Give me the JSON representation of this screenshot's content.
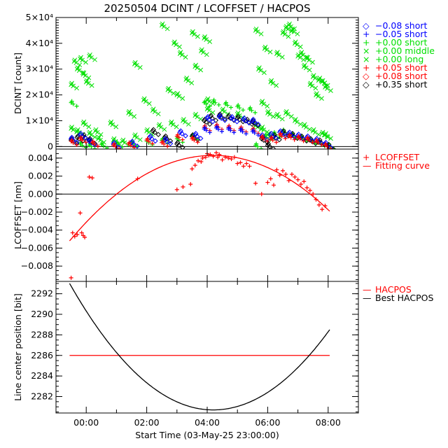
{
  "title": "20250504 DCINT / LCOFFSET / HACPOS",
  "xlabel": "Start Time (03-May-25 23:00:00)",
  "x_ticks": [
    "00:00",
    "02:00",
    "04:00",
    "06:00",
    "08:00"
  ],
  "colors": {
    "green": "#00e000",
    "blue": "#0000ff",
    "red": "#ff0000",
    "black": "#000000"
  },
  "chart_data": [
    {
      "type": "scatter",
      "name": "DCINT",
      "ylabel": "DCINT [count]",
      "xlim_hours": [
        -1.0,
        9.0
      ],
      "ylim": [
        -1000,
        50000
      ],
      "y_ticks": [
        {
          "value": 0,
          "label": "0"
        },
        {
          "value": 10000,
          "label": "1×10⁴"
        },
        {
          "value": 20000,
          "label": "2×10⁴"
        },
        {
          "value": 30000,
          "label": "3×10⁴"
        },
        {
          "value": 40000,
          "label": "4×10⁴"
        },
        {
          "value": 50000,
          "label": "5×10⁴"
        }
      ],
      "legend": [
        {
          "symbol": "◇",
          "label": "−0.08 short",
          "color": "#0000ff"
        },
        {
          "symbol": "+",
          "label": "−0.05 short",
          "color": "#0000ff"
        },
        {
          "symbol": "+",
          "label": "+0.00 short",
          "color": "#00e000"
        },
        {
          "symbol": "×",
          "label": "+0.00 middle",
          "color": "#00e000"
        },
        {
          "symbol": "×",
          "label": "+0.00 long",
          "color": "#00e000"
        },
        {
          "symbol": "+",
          "label": "+0.05 short",
          "color": "#ff0000"
        },
        {
          "symbol": "◇",
          "label": "+0.08 short",
          "color": "#ff0000"
        },
        {
          "symbol": "◇",
          "label": "+0.35 short",
          "color": "#000000"
        }
      ],
      "series": [
        {
          "name": "+0.00 long",
          "marker": "x",
          "color": "#00e000",
          "x": [
            -0.5,
            -0.4,
            -0.3,
            -0.2,
            -0.1,
            0.0,
            0.1,
            0.3,
            0.8,
            1.4,
            1.6,
            1.9,
            2.2,
            2.5,
            2.7,
            2.9,
            3.0,
            3.1,
            3.3,
            3.5,
            3.6,
            3.8,
            3.9,
            4.0,
            5.6,
            5.7,
            5.8,
            5.9,
            6.0,
            6.1,
            6.3,
            6.5,
            6.6,
            6.7,
            6.8,
            6.9,
            7.0,
            7.1,
            7.2,
            7.3,
            7.4,
            7.5,
            7.6,
            7.7,
            7.8,
            7.9
          ],
          "y": [
            24000,
            33000,
            30000,
            34000,
            28000,
            25000,
            35000,
            6000,
            9000,
            13000,
            32000,
            18000,
            14000,
            47000,
            22000,
            40000,
            20000,
            36000,
            26000,
            44000,
            31000,
            37000,
            42000,
            18000,
            45000,
            30000,
            17000,
            38000,
            13000,
            25000,
            36000,
            44000,
            46000,
            47000,
            45000,
            40000,
            35000,
            36000,
            31000,
            34000,
            24000,
            27000,
            20000,
            26000,
            25000,
            23000
          ]
        },
        {
          "name": "+0.00 middle",
          "marker": "x",
          "color": "#00e000",
          "x": [
            -0.5,
            -0.3,
            -0.1,
            0.1,
            0.4,
            0.9,
            1.2,
            1.6,
            2.0,
            2.4,
            2.8,
            3.2,
            3.6,
            4.0,
            4.5,
            5.0,
            5.6,
            5.8,
            6.0,
            6.3,
            6.6,
            6.9,
            7.2,
            7.5,
            7.8,
            7.9
          ],
          "y": [
            7000,
            6000,
            9000,
            5000,
            3000,
            2500,
            2000,
            4000,
            6000,
            8000,
            9000,
            10000,
            12000,
            14500,
            14000,
            12500,
            8000,
            7000,
            4500,
            12000,
            13000,
            10000,
            8000,
            6000,
            5000,
            4500
          ]
        },
        {
          "name": "+0.00 short",
          "marker": "+",
          "color": "#00e000",
          "x": [
            -0.5,
            -0.2,
            0.1,
            0.5,
            1.0,
            1.5,
            2.0,
            2.5,
            3.0,
            3.5,
            3.9,
            4.2,
            4.6,
            5.0,
            5.4,
            5.6,
            5.9,
            6.2,
            6.5,
            6.8,
            7.1,
            7.4,
            7.7,
            8.0
          ],
          "y": [
            17000,
            1000,
            500,
            800,
            1200,
            1500,
            2000,
            2500,
            3000,
            4000,
            17000,
            17500,
            16500,
            15500,
            14500,
            500,
            4000,
            5000,
            6000,
            4500,
            3500,
            2500,
            1500,
            500
          ]
        },
        {
          "name": "+0.35 short",
          "marker": "diamond",
          "color": "#000000",
          "x": [
            -0.5,
            -0.3,
            -0.1,
            0.1,
            2.2,
            2.6,
            3.0,
            3.5,
            3.9,
            4.1,
            4.4,
            4.7,
            5.0,
            5.3,
            5.5,
            5.8,
            6.0,
            6.2,
            6.5,
            6.8,
            7.1,
            7.4,
            7.7,
            8.0
          ],
          "y": [
            2500,
            3500,
            4000,
            2500,
            6000,
            3500,
            1000,
            4000,
            10000,
            11500,
            12000,
            11500,
            11000,
            10000,
            9500,
            3000,
            500,
            4000,
            5500,
            4500,
            3500,
            2500,
            2000,
            200
          ]
        },
        {
          "name": "−0.08 short",
          "marker": "diamond",
          "color": "#0000ff",
          "x": [
            -0.5,
            -0.2,
            0.1,
            0.9,
            1.5,
            2.1,
            2.6,
            3.1,
            3.6,
            4.0,
            4.4,
            4.8,
            5.2,
            5.5,
            5.8,
            6.1,
            6.4,
            6.7,
            7.0,
            7.3,
            7.6,
            7.9
          ],
          "y": [
            3000,
            4500,
            2000,
            1000,
            1500,
            3500,
            2500,
            5500,
            4500,
            11000,
            11500,
            11000,
            10500,
            10000,
            4000,
            4500,
            5500,
            5000,
            4200,
            3500,
            2500,
            1000
          ]
        },
        {
          "name": "+0.05 short",
          "marker": "+",
          "color": "#ff0000",
          "x": [
            -0.5,
            -0.2,
            0.2,
            0.9,
            1.4,
            2.0,
            2.5,
            3.0,
            3.5,
            3.9,
            4.3,
            4.7,
            5.1,
            5.5,
            5.8,
            6.1,
            6.4,
            6.7,
            7.0,
            7.3,
            7.6,
            7.9
          ],
          "y": [
            2000,
            3000,
            1500,
            500,
            1000,
            2500,
            1500,
            4000,
            3000,
            7500,
            8000,
            7500,
            7000,
            6500,
            3500,
            3000,
            4500,
            4000,
            3500,
            3000,
            2000,
            500
          ]
        },
        {
          "name": "−0.05 short",
          "marker": "+",
          "color": "#0000ff",
          "x": [
            3.9,
            4.3,
            4.7,
            5.1,
            5.5
          ],
          "y": [
            6800,
            7200,
            6800,
            6300,
            5800
          ]
        }
      ]
    },
    {
      "type": "scatter",
      "name": "LCOFFSET",
      "ylabel": "LCOFFSET [nm]",
      "xlim_hours": [
        -1.0,
        9.0
      ],
      "ylim": [
        -0.0097,
        0.005
      ],
      "y_ticks": [
        {
          "value": 0.004,
          "label": "0.004"
        },
        {
          "value": 0.002,
          "label": "0.002"
        },
        {
          "value": 0.0,
          "label": "0.000"
        },
        {
          "value": -0.002,
          "label": "−0.002"
        },
        {
          "value": -0.004,
          "label": "−0.004"
        },
        {
          "value": -0.006,
          "label": "−0.006"
        },
        {
          "value": -0.008,
          "label": "−0.008"
        }
      ],
      "legend": [
        {
          "symbol": "+",
          "label": "LCOFFSET",
          "color": "#ff0000"
        },
        {
          "symbol": "—",
          "label": "Fitting curve",
          "color": "#ff0000"
        }
      ],
      "points": {
        "x": [
          -0.5,
          -0.45,
          -0.38,
          -0.3,
          -0.2,
          -0.15,
          -0.1,
          -0.05,
          0.1,
          0.2,
          1.7,
          3.0,
          3.2,
          3.45,
          3.5,
          3.6,
          3.7,
          3.8,
          3.85,
          3.95,
          4.0,
          4.05,
          4.1,
          4.2,
          4.3,
          4.35,
          4.4,
          4.5,
          4.6,
          4.7,
          4.8,
          4.9,
          5.0,
          5.1,
          5.2,
          5.3,
          5.4,
          5.6,
          5.8,
          6.0,
          6.1,
          6.2,
          6.3,
          6.4,
          6.5,
          6.6,
          6.7,
          6.8,
          6.9,
          7.0,
          7.1,
          7.2,
          7.3,
          7.4,
          7.5,
          7.6,
          7.7,
          7.8,
          7.9
        ],
        "y": [
          -0.0093,
          -0.0043,
          -0.0047,
          -0.0045,
          -0.0021,
          -0.0043,
          -0.0046,
          -0.0048,
          0.0019,
          0.0018,
          0.0017,
          0.0005,
          0.0008,
          0.0011,
          0.0028,
          0.0032,
          0.0037,
          0.0036,
          0.004,
          0.0041,
          0.0045,
          0.0043,
          0.0044,
          0.0042,
          0.0046,
          0.0041,
          0.0044,
          0.0038,
          0.0041,
          0.004,
          0.0039,
          0.0041,
          0.0034,
          0.0035,
          0.0031,
          0.0034,
          0.0031,
          0.0012,
          0.0,
          0.0013,
          0.0017,
          0.001,
          0.0027,
          0.0021,
          0.0026,
          0.0022,
          0.0015,
          0.0022,
          0.0019,
          0.0016,
          0.0011,
          0.0014,
          0.0007,
          0.0004,
          0.0,
          -0.0006,
          -0.0012,
          -0.0017,
          -0.0013
        ]
      },
      "fit_curve": {
        "peak_hour": 4.2,
        "peak_value": 0.0043,
        "start_hour": -0.55,
        "end_hour": 8.05,
        "start_value": -0.0052,
        "end_value": -0.0019
      }
    },
    {
      "type": "line",
      "name": "HACPOS",
      "ylabel": "Line center position [bit]",
      "xlim_hours": [
        -1.0,
        9.0
      ],
      "ylim": [
        2280.4,
        2293.2
      ],
      "y_ticks": [
        {
          "value": 2282,
          "label": "2282"
        },
        {
          "value": 2284,
          "label": "2284"
        },
        {
          "value": 2286,
          "label": "2286"
        },
        {
          "value": 2288,
          "label": "2288"
        },
        {
          "value": 2290,
          "label": "2290"
        },
        {
          "value": 2292,
          "label": "2292"
        }
      ],
      "legend": [
        {
          "symbol": "—",
          "label": "HACPOS",
          "color": "#ff0000"
        },
        {
          "symbol": "—",
          "label": "Best HACPOS",
          "color": "#000000"
        }
      ],
      "series": [
        {
          "name": "HACPOS",
          "color": "#ff0000",
          "x": [
            -0.55,
            8.05
          ],
          "y": [
            2286.0,
            2286.0
          ]
        },
        {
          "name": "Best HACPOS",
          "color": "#000000",
          "vertex_hour": 4.2,
          "vertex_value": 2280.7,
          "start_hour": -0.55,
          "end_hour": 8.05,
          "start_value": 2293.0,
          "end_value": 2288.5
        }
      ]
    }
  ]
}
